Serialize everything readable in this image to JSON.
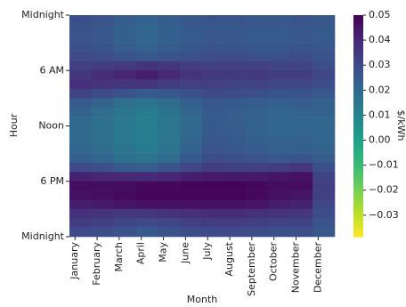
{
  "chart_data": {
    "type": "heatmap",
    "x_label": "Month",
    "y_label": "Hour",
    "colorbar_label": "$/kWh",
    "colormap": "viridis_r",
    "categories": [
      "January",
      "February",
      "March",
      "April",
      "May",
      "June",
      "July",
      "August",
      "September",
      "October",
      "November",
      "December"
    ],
    "ylim": [
      0,
      24
    ],
    "yticks": [
      {
        "value": 0,
        "label": "Midnight"
      },
      {
        "value": 6,
        "label": "6 AM"
      },
      {
        "value": 12,
        "label": "Noon"
      },
      {
        "value": 18,
        "label": "6 PM"
      },
      {
        "value": 24,
        "label": "Midnight"
      }
    ],
    "zlim": [
      -0.0386,
      0.05
    ],
    "zticks": [
      0.05,
      0.04,
      0.03,
      0.02,
      0.01,
      {
        "value": 0,
        "label": "0.00"
      },
      {
        "value": -0.01,
        "label": "−0.01"
      },
      {
        "value": -0.02,
        "label": "−0.02"
      },
      {
        "value": -0.03,
        "label": "−0.03"
      }
    ],
    "values": [
      [
        0.028,
        0.027,
        0.027,
        0.028,
        0.03,
        0.033,
        0.036,
        0.038,
        0.032,
        0.025,
        0.022,
        0.02,
        0.02,
        0.02,
        0.021,
        0.023,
        0.03,
        0.042,
        0.047,
        0.046,
        0.043,
        0.038,
        0.034,
        0.03
      ],
      [
        0.027,
        0.026,
        0.026,
        0.027,
        0.029,
        0.034,
        0.039,
        0.037,
        0.03,
        0.022,
        0.019,
        0.018,
        0.018,
        0.018,
        0.019,
        0.021,
        0.028,
        0.041,
        0.047,
        0.047,
        0.044,
        0.037,
        0.033,
        0.029
      ],
      [
        0.024,
        0.023,
        0.023,
        0.024,
        0.027,
        0.035,
        0.041,
        0.036,
        0.027,
        0.018,
        0.015,
        0.014,
        0.014,
        0.014,
        0.015,
        0.018,
        0.025,
        0.04,
        0.047,
        0.048,
        0.045,
        0.036,
        0.031,
        0.027
      ],
      [
        0.022,
        0.021,
        0.021,
        0.022,
        0.026,
        0.037,
        0.043,
        0.036,
        0.025,
        0.016,
        0.013,
        0.012,
        0.012,
        0.012,
        0.013,
        0.016,
        0.024,
        0.04,
        0.048,
        0.049,
        0.046,
        0.036,
        0.03,
        0.025
      ],
      [
        0.024,
        0.023,
        0.023,
        0.024,
        0.027,
        0.036,
        0.04,
        0.034,
        0.026,
        0.019,
        0.016,
        0.015,
        0.015,
        0.015,
        0.016,
        0.019,
        0.027,
        0.041,
        0.048,
        0.049,
        0.046,
        0.037,
        0.031,
        0.027
      ],
      [
        0.026,
        0.025,
        0.025,
        0.026,
        0.028,
        0.034,
        0.037,
        0.033,
        0.028,
        0.023,
        0.021,
        0.02,
        0.02,
        0.021,
        0.022,
        0.025,
        0.031,
        0.043,
        0.049,
        0.049,
        0.046,
        0.038,
        0.033,
        0.029
      ],
      [
        0.027,
        0.026,
        0.026,
        0.027,
        0.029,
        0.033,
        0.035,
        0.033,
        0.03,
        0.026,
        0.025,
        0.025,
        0.025,
        0.026,
        0.027,
        0.029,
        0.034,
        0.044,
        0.049,
        0.049,
        0.046,
        0.039,
        0.034,
        0.03
      ],
      [
        0.027,
        0.026,
        0.026,
        0.027,
        0.029,
        0.033,
        0.035,
        0.032,
        0.029,
        0.025,
        0.024,
        0.024,
        0.024,
        0.025,
        0.026,
        0.028,
        0.033,
        0.044,
        0.049,
        0.049,
        0.046,
        0.039,
        0.034,
        0.03
      ],
      [
        0.026,
        0.025,
        0.025,
        0.026,
        0.028,
        0.033,
        0.035,
        0.032,
        0.028,
        0.024,
        0.022,
        0.022,
        0.022,
        0.023,
        0.024,
        0.027,
        0.033,
        0.044,
        0.048,
        0.048,
        0.045,
        0.038,
        0.033,
        0.029
      ],
      [
        0.026,
        0.025,
        0.025,
        0.026,
        0.028,
        0.032,
        0.034,
        0.031,
        0.027,
        0.023,
        0.021,
        0.021,
        0.021,
        0.022,
        0.023,
        0.026,
        0.034,
        0.045,
        0.047,
        0.046,
        0.043,
        0.037,
        0.032,
        0.028
      ],
      [
        0.027,
        0.026,
        0.026,
        0.027,
        0.029,
        0.032,
        0.034,
        0.031,
        0.027,
        0.024,
        0.022,
        0.021,
        0.021,
        0.022,
        0.023,
        0.027,
        0.036,
        0.046,
        0.047,
        0.045,
        0.042,
        0.036,
        0.032,
        0.029
      ],
      [
        0.026,
        0.025,
        0.025,
        0.026,
        0.027,
        0.029,
        0.031,
        0.029,
        0.026,
        0.023,
        0.022,
        0.021,
        0.021,
        0.021,
        0.022,
        0.024,
        0.028,
        0.032,
        0.033,
        0.033,
        0.031,
        0.029,
        0.027,
        0.026
      ]
    ]
  }
}
